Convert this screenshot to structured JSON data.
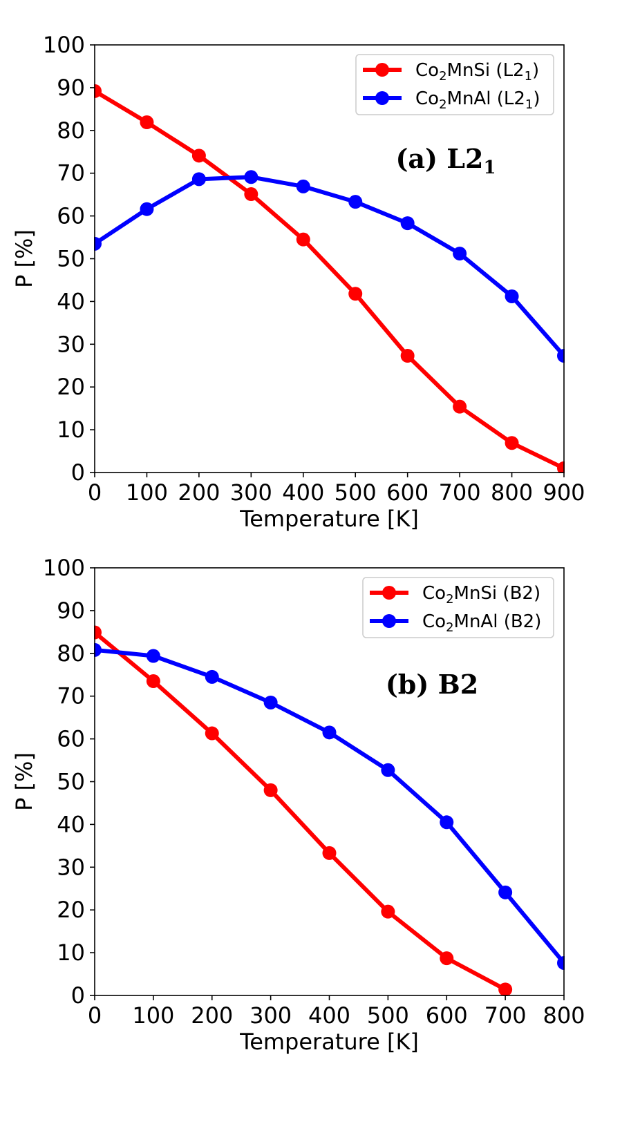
{
  "chart_data": [
    {
      "type": "line",
      "panel_label": "(a) L2",
      "panel_label_sub": "1",
      "xlabel": "Temperature [K]",
      "ylabel": "P [%]",
      "xlim": [
        0,
        900
      ],
      "ylim": [
        0,
        100
      ],
      "xticks": [
        0,
        100,
        200,
        300,
        400,
        500,
        600,
        700,
        800,
        900
      ],
      "yticks": [
        0,
        10,
        20,
        30,
        40,
        50,
        60,
        70,
        80,
        90,
        100
      ],
      "legend_position": "top-right",
      "grid": false,
      "series": [
        {
          "name": "Co2MnSi (L21)",
          "legend": {
            "pre": "Co",
            "sub1": "2",
            "mid": "MnSi (L2",
            "sub2": "1",
            "post": ")"
          },
          "color": "#ff0000",
          "x": [
            0,
            100,
            200,
            300,
            400,
            500,
            600,
            700,
            800,
            900
          ],
          "values": [
            89.2,
            81.9,
            74.1,
            65.1,
            54.5,
            41.8,
            27.3,
            15.4,
            6.9,
            1.0
          ]
        },
        {
          "name": "Co2MnAl (L21)",
          "legend": {
            "pre": "Co",
            "sub1": "2",
            "mid": "MnAl (L2",
            "sub2": "1",
            "post": ")"
          },
          "color": "#0000ff",
          "x": [
            0,
            100,
            200,
            300,
            400,
            500,
            600,
            700,
            800,
            900
          ],
          "values": [
            53.5,
            61.6,
            68.6,
            69.1,
            66.9,
            63.3,
            58.3,
            51.2,
            41.2,
            27.3
          ]
        }
      ]
    },
    {
      "type": "line",
      "panel_label": "(b) B2",
      "panel_label_sub": "",
      "xlabel": "Temperature [K]",
      "ylabel": "P [%]",
      "xlim": [
        0,
        800
      ],
      "ylim": [
        0,
        100
      ],
      "xticks": [
        0,
        100,
        200,
        300,
        400,
        500,
        600,
        700,
        800
      ],
      "yticks": [
        0,
        10,
        20,
        30,
        40,
        50,
        60,
        70,
        80,
        90,
        100
      ],
      "legend_position": "top-right",
      "grid": false,
      "series": [
        {
          "name": "Co2MnSi (B2)",
          "legend": {
            "pre": "Co",
            "sub1": "2",
            "mid": "MnSi (B2)",
            "sub2": "",
            "post": ""
          },
          "color": "#ff0000",
          "x": [
            0,
            100,
            200,
            300,
            400,
            500,
            600,
            700
          ],
          "values": [
            84.9,
            73.5,
            61.3,
            48.0,
            33.3,
            19.6,
            8.7,
            1.4
          ]
        },
        {
          "name": "Co2MnAl (B2)",
          "legend": {
            "pre": "Co",
            "sub1": "2",
            "mid": "MnAl (B2)",
            "sub2": "",
            "post": ""
          },
          "color": "#0000ff",
          "x": [
            0,
            100,
            200,
            300,
            400,
            500,
            600,
            700,
            800
          ],
          "values": [
            80.8,
            79.4,
            74.5,
            68.5,
            61.5,
            52.7,
            40.5,
            24.1,
            7.6
          ]
        }
      ]
    }
  ]
}
